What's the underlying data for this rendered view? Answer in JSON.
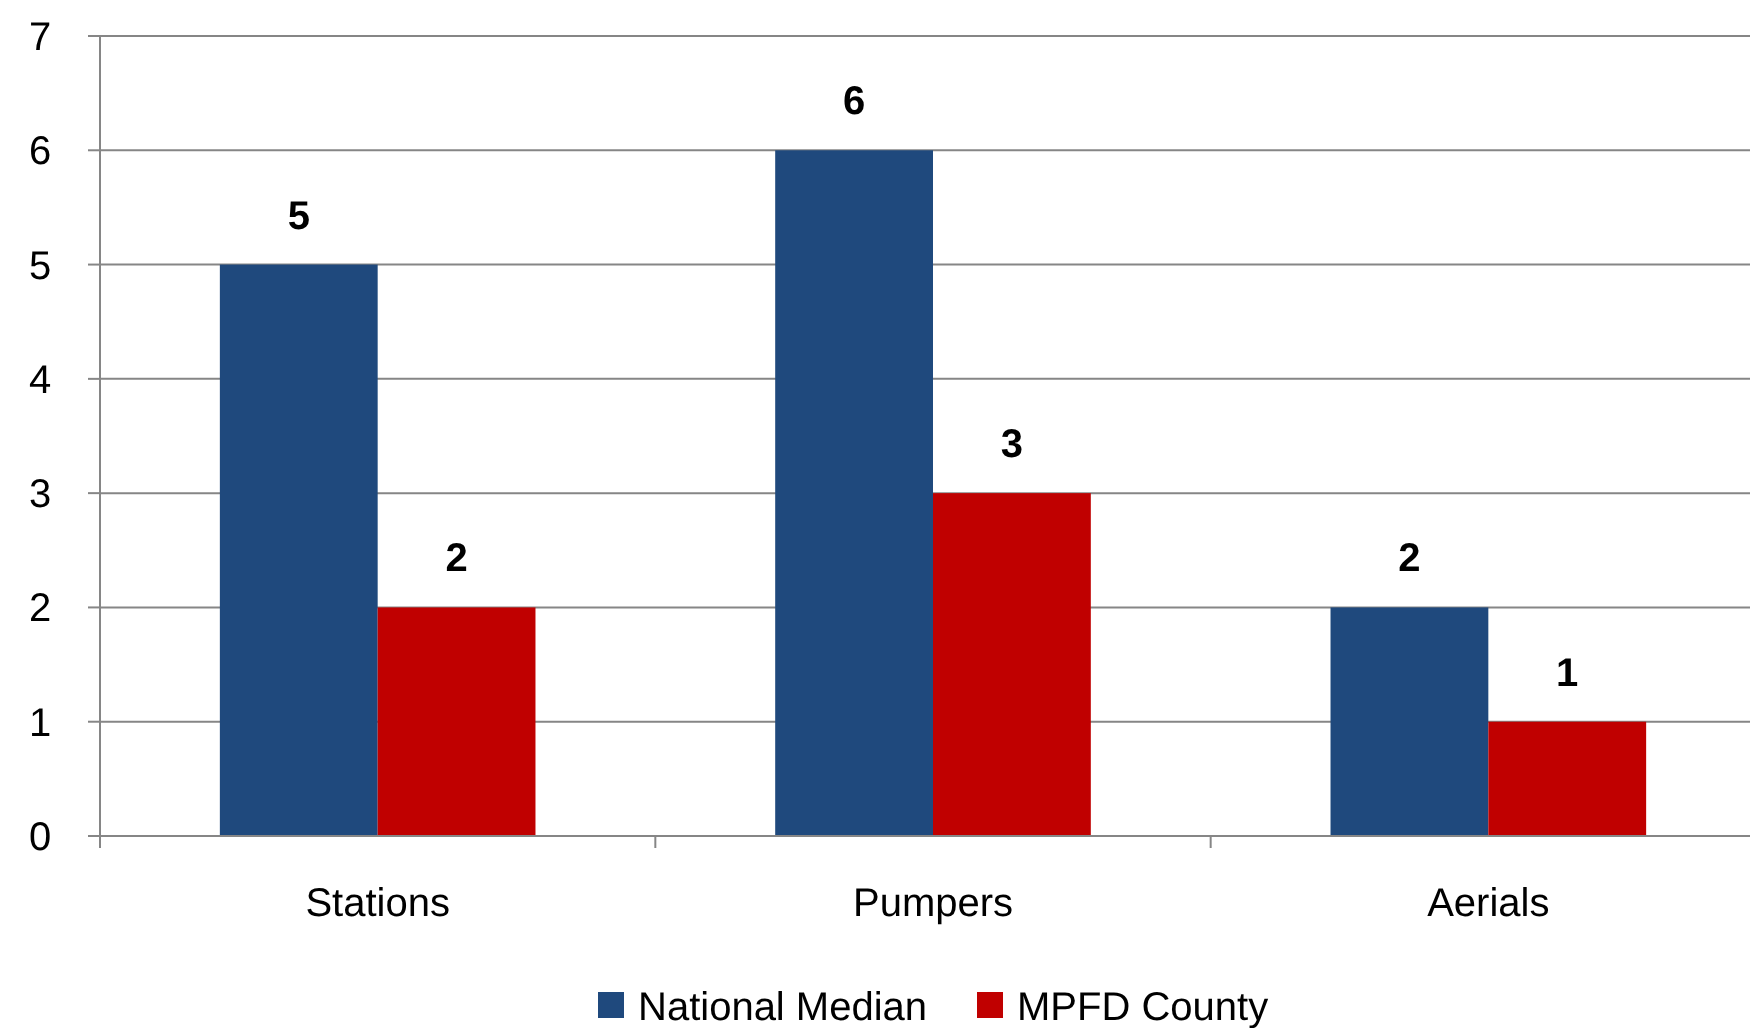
{
  "chart_data": {
    "type": "bar",
    "categories": [
      "Stations",
      "Pumpers",
      "Aerials"
    ],
    "series": [
      {
        "name": "National Median",
        "color": "#1f497d",
        "values": [
          5,
          6,
          2
        ]
      },
      {
        "name": "MPFD County",
        "color": "#c00000",
        "values": [
          2,
          3,
          1
        ]
      }
    ],
    "ylim": [
      0,
      7
    ],
    "yticks": [
      0,
      1,
      2,
      3,
      4,
      5,
      6,
      7
    ],
    "grid": "y",
    "legend": "bottom",
    "data_labels": true
  }
}
